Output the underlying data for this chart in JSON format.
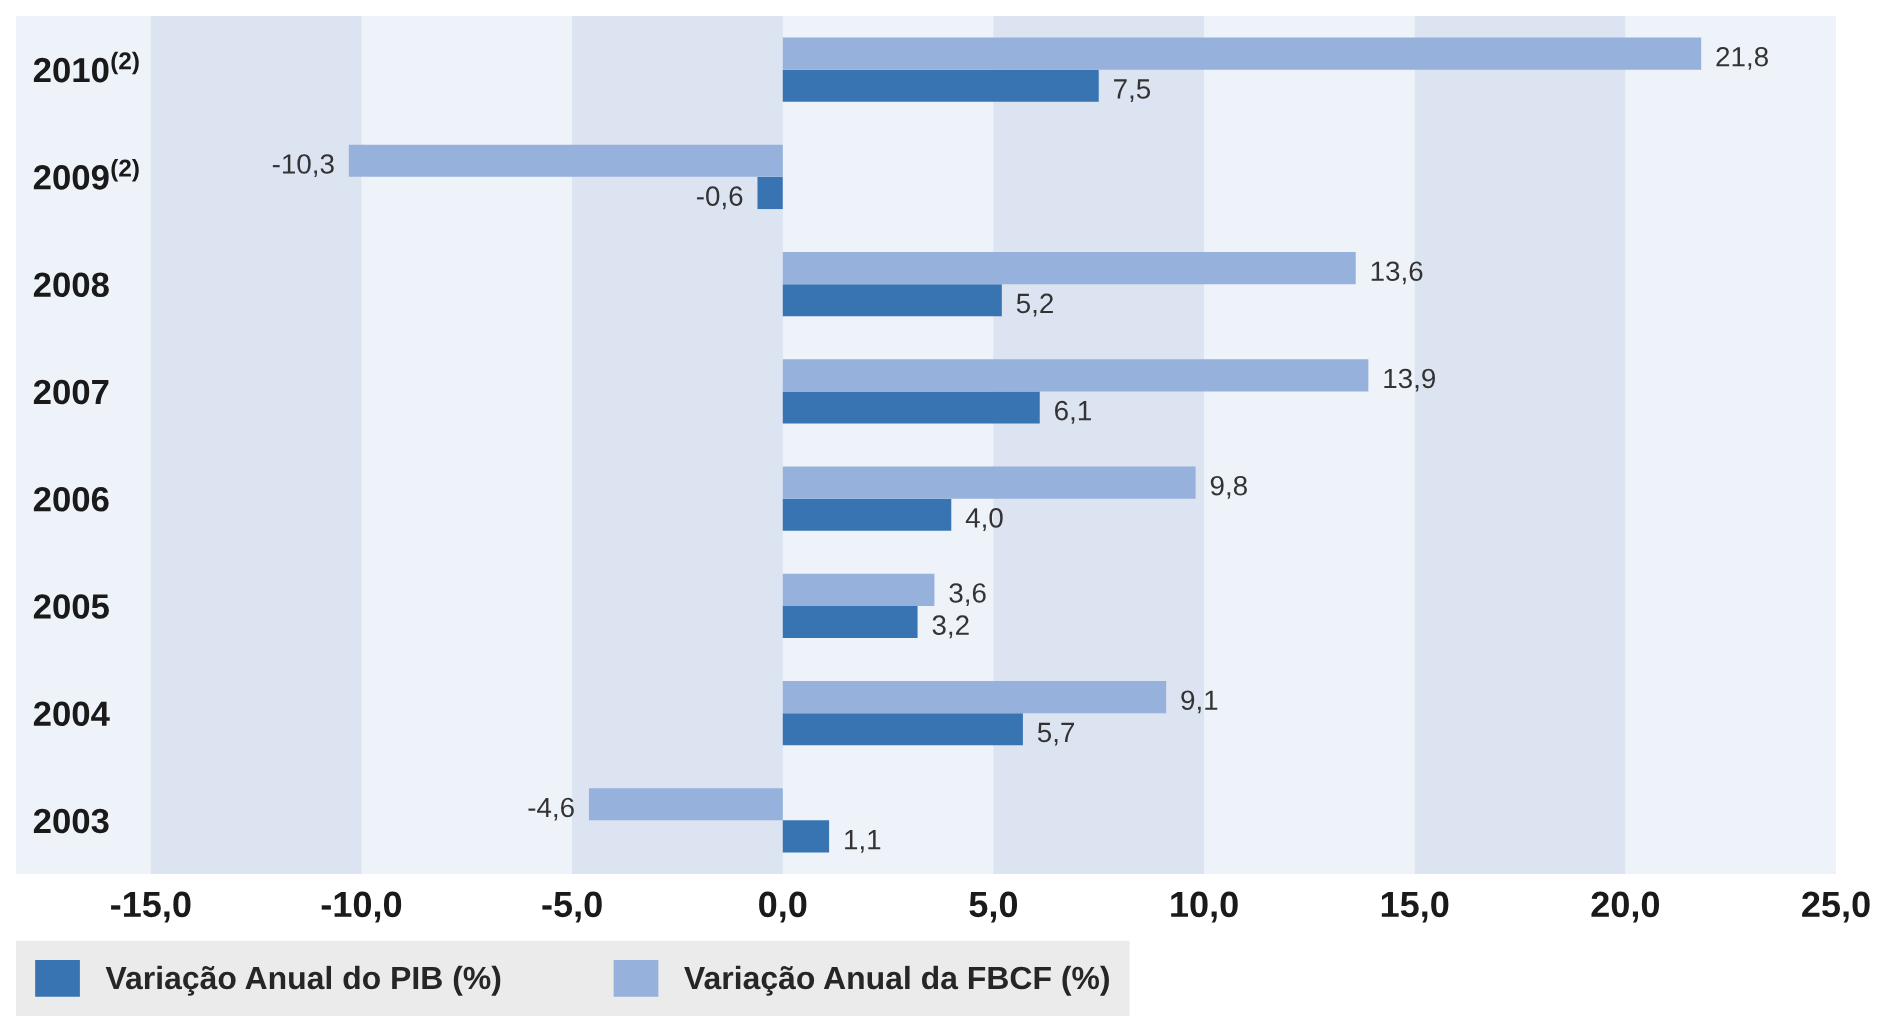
{
  "chart_data": {
    "type": "bar",
    "orientation": "horizontal",
    "categories": [
      "2010$^{(2)}$",
      "2009$^{(2)}$",
      "2008",
      "2007",
      "2006",
      "2005",
      "2004",
      "2003"
    ],
    "series": [
      {
        "name": "Variação Anual do PIB (%)",
        "color": "#3874b2",
        "values": [
          7.5,
          -0.6,
          5.2,
          6.1,
          4.0,
          3.2,
          5.7,
          1.1
        ],
        "value_labels": [
          "7,5",
          "-0,6",
          "5,2",
          "6,1",
          "4,0",
          "3,2",
          "5,7",
          "1,1"
        ]
      },
      {
        "name": "Variação Anual da FBCF (%)",
        "color": "#96b1dc",
        "values": [
          21.8,
          -10.3,
          13.6,
          13.9,
          9.8,
          3.6,
          9.1,
          -4.6
        ],
        "value_labels": [
          "21,8",
          "-10,3",
          "13,6",
          "13,9",
          "9,8",
          "3,6",
          "9,1",
          "-4,6"
        ]
      }
    ],
    "xlim": [
      -18.2,
      25
    ],
    "xticks": [
      {
        "value": -15,
        "label": "-15,0"
      },
      {
        "value": -10,
        "label": "-10,0"
      },
      {
        "value": -5,
        "label": "-5,0"
      },
      {
        "value": 0,
        "label": "0,0"
      },
      {
        "value": 5,
        "label": "5,0"
      },
      {
        "value": 10,
        "label": "10,0"
      },
      {
        "value": 15,
        "label": "15,0"
      },
      {
        "value": 20,
        "label": "20,0"
      },
      {
        "value": 25,
        "label": "25,0"
      }
    ],
    "bands": [
      {
        "axis": "x",
        "from": -15,
        "to": -10,
        "color": "#dce3f1"
      },
      {
        "axis": "x",
        "from": -5,
        "to": 0,
        "color": "#dce3f1"
      },
      {
        "axis": "x",
        "from": 5,
        "to": 10,
        "color": "#dce3f1"
      },
      {
        "axis": "x",
        "from": 15,
        "to": 20,
        "color": "#dce3f1"
      }
    ],
    "legend": "bottom"
  }
}
